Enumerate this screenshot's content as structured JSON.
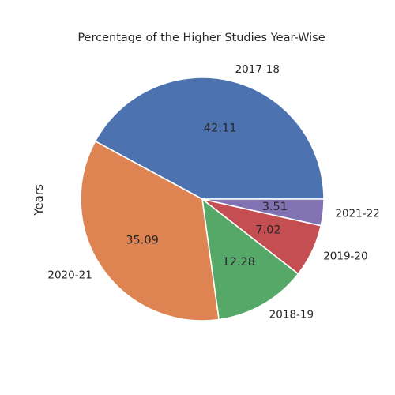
{
  "chart_data": {
    "type": "pie",
    "title": "Percentage of the Higher Studies Year-Wise",
    "ylabel": "Years",
    "value_format": "0.00",
    "start_angle_deg": 0,
    "direction": "counterclockwise",
    "slices": [
      {
        "label": "2017-18",
        "value": 42.11,
        "color": "#4c72b0"
      },
      {
        "label": "2020-21",
        "value": 35.09,
        "color": "#dd8452"
      },
      {
        "label": "2018-19",
        "value": 12.28,
        "color": "#55a868"
      },
      {
        "label": "2019-20",
        "value": 7.02,
        "color": "#c44e52"
      },
      {
        "label": "2021-22",
        "value": 3.51,
        "color": "#8172b3"
      }
    ]
  }
}
